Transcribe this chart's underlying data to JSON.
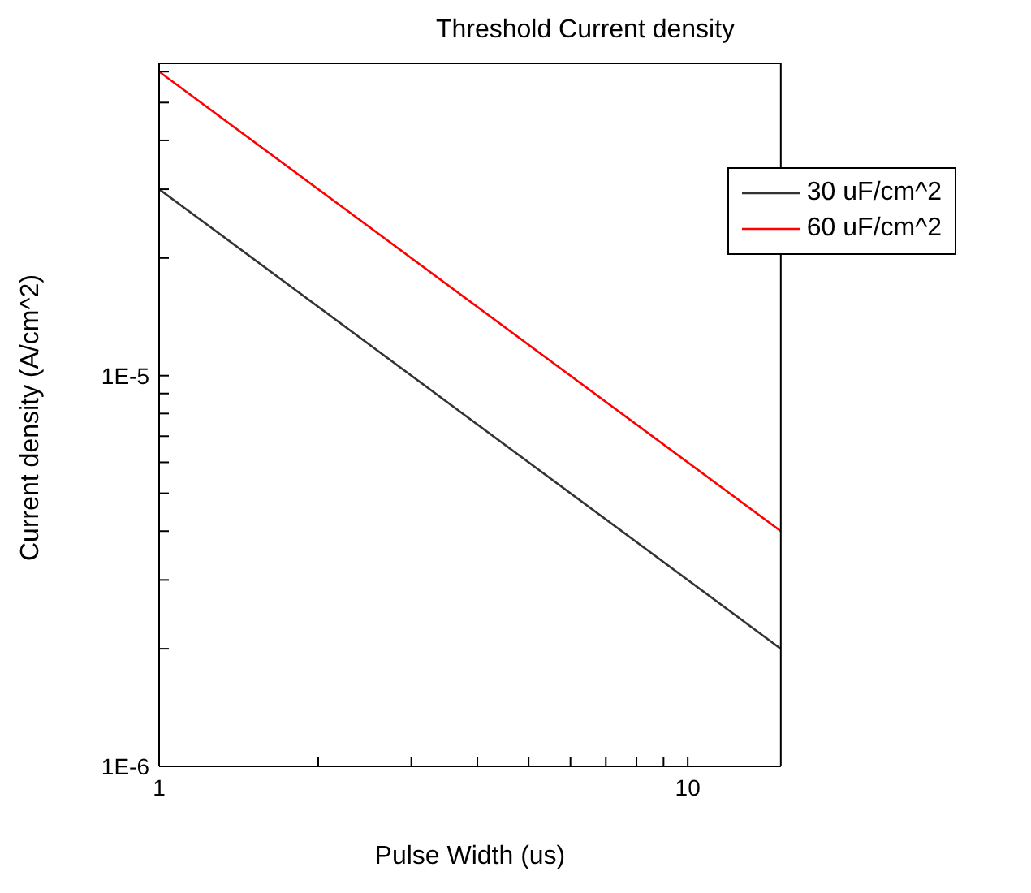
{
  "chart_data": {
    "type": "line",
    "title": "Threshold Current density",
    "xlabel": "Pulse Width (us)",
    "ylabel": "Current density (A/cm^2)",
    "x": [
      1,
      15
    ],
    "series": [
      {
        "name": "30 uF/cm^2",
        "color": "#333333",
        "values": [
          3e-05,
          2e-06
        ]
      },
      {
        "name": "60 uF/cm^2",
        "color": "#ff0000",
        "values": [
          6e-05,
          4e-06
        ]
      }
    ],
    "log": "xy",
    "xlim": [
      1,
      15
    ],
    "ylim": [
      1e-06,
      6.3e-05
    ],
    "xticks": [
      1,
      {
        "value": 2,
        "label": null
      },
      {
        "value": 3,
        "label": null
      },
      {
        "value": 4,
        "label": null
      },
      {
        "value": 5,
        "label": null
      },
      {
        "value": 6,
        "label": null
      },
      {
        "value": 7,
        "label": null
      },
      {
        "value": 8,
        "label": null
      },
      {
        "value": 9,
        "label": null
      },
      10
    ],
    "yticks": [
      {
        "value": 1e-06,
        "label": "1E-6"
      },
      {
        "value": 2e-06,
        "label": null
      },
      {
        "value": 3e-06,
        "label": null
      },
      {
        "value": 4e-06,
        "label": null
      },
      {
        "value": 5e-06,
        "label": null
      },
      {
        "value": 6e-06,
        "label": null
      },
      {
        "value": 7e-06,
        "label": null
      },
      {
        "value": 8e-06,
        "label": null
      },
      {
        "value": 9e-06,
        "label": null
      },
      {
        "value": 1e-05,
        "label": "1E-5"
      },
      {
        "value": 2e-05,
        "label": null
      },
      {
        "value": 3e-05,
        "label": null
      },
      {
        "value": 4e-05,
        "label": null
      },
      {
        "value": 5e-05,
        "label": null
      },
      {
        "value": 6e-05,
        "label": null
      }
    ],
    "legend": "top right",
    "grid": false,
    "marker": "none",
    "line_style": "solid"
  }
}
